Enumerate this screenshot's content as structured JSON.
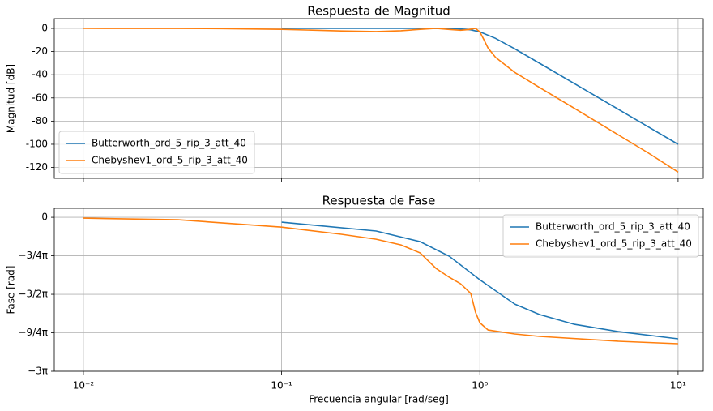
{
  "chart_data": [
    {
      "type": "line",
      "title": "Respuesta de Magnitud",
      "ylabel": "Magnitud [dB]",
      "xscale": "log",
      "grid": true,
      "legend": "lower left",
      "xticklabels": false,
      "xlim": [
        0.00713,
        13.4
      ],
      "ylim": [
        -129.4,
        8.4
      ],
      "xticks": [
        0.01,
        0.1,
        1,
        10
      ],
      "yticks": [
        0,
        -20,
        -40,
        -60,
        -80,
        -100,
        -120
      ],
      "series": [
        {
          "name": "Butterworth_ord_5_rip_3_att_40",
          "color": "#1f77b4",
          "x": [
            0.1,
            0.2,
            0.5,
            0.7,
            0.8,
            0.9,
            1,
            1.2,
            1.5,
            2,
            3,
            5,
            7,
            10
          ],
          "values": [
            0,
            0,
            -0.004,
            -0.12,
            -0.46,
            -1.24,
            -3.01,
            -8.59,
            -17.6,
            -30.1,
            -47.7,
            -69.9,
            -84.5,
            -100
          ]
        },
        {
          "name": "Chebyshev1_ord_5_rip_3_att_40",
          "color": "#ff7f0e",
          "x": [
            0.01,
            0.03,
            0.05,
            0.1,
            0.2,
            0.3,
            0.4,
            0.5,
            0.6,
            0.7,
            0.8,
            0.88,
            0.95,
            1.0,
            1.05,
            1.1,
            1.2,
            1.5,
            2,
            3,
            5,
            7,
            10
          ],
          "values": [
            0,
            -0.05,
            -0.2,
            -0.8,
            -2.2,
            -2.7,
            -2.0,
            -0.8,
            0,
            -0.9,
            -1.6,
            -1.0,
            0,
            -3,
            -10,
            -17,
            -25,
            -38,
            -51,
            -69,
            -92,
            -107,
            -124
          ]
        }
      ]
    },
    {
      "type": "line",
      "title": "Respuesta de Fase",
      "ylabel": "Fase [rad]",
      "xlabel": "Frecuencia angular [rad/seg]",
      "xscale": "log",
      "grid": true,
      "legend": "upper right",
      "xticklabels": true,
      "xlim": [
        0.00713,
        13.4
      ],
      "ylim": [
        -9.4248,
        0.55
      ],
      "xticks": [
        {
          "value": 0.01,
          "label": "10⁻²"
        },
        {
          "value": 0.1,
          "label": "10⁻¹"
        },
        {
          "value": 1,
          "label": "10⁰"
        },
        {
          "value": 10,
          "label": "10¹"
        }
      ],
      "yticks": [
        0,
        {
          "value": -2.3562,
          "label": "−3/4π"
        },
        {
          "value": -4.7124,
          "label": "−3/2π"
        },
        {
          "value": -7.0686,
          "label": "−9/4π"
        },
        {
          "value": -9.4248,
          "label": "−3π"
        }
      ],
      "series": [
        {
          "name": "Butterworth_ord_5_rip_3_att_40",
          "color": "#1f77b4",
          "x": [
            0.1,
            0.3,
            0.5,
            0.7,
            1,
            1.5,
            2,
            3,
            5,
            10
          ],
          "values": [
            -0.3,
            -0.84,
            -1.49,
            -2.38,
            -3.82,
            -5.31,
            -5.95,
            -6.55,
            -7.0,
            -7.44
          ]
        },
        {
          "name": "Chebyshev1_ord_5_rip_3_att_40",
          "color": "#ff7f0e",
          "x": [
            0.01,
            0.03,
            0.1,
            0.2,
            0.3,
            0.4,
            0.5,
            0.6,
            0.7,
            0.8,
            0.9,
            0.95,
            1.0,
            1.1,
            1.5,
            2,
            5,
            10
          ],
          "values": [
            -0.05,
            -0.15,
            -0.6,
            -1.04,
            -1.34,
            -1.69,
            -2.18,
            -3.12,
            -3.67,
            -4.07,
            -4.66,
            -5.8,
            -6.45,
            -6.9,
            -7.14,
            -7.29,
            -7.59,
            -7.74
          ]
        }
      ]
    }
  ]
}
